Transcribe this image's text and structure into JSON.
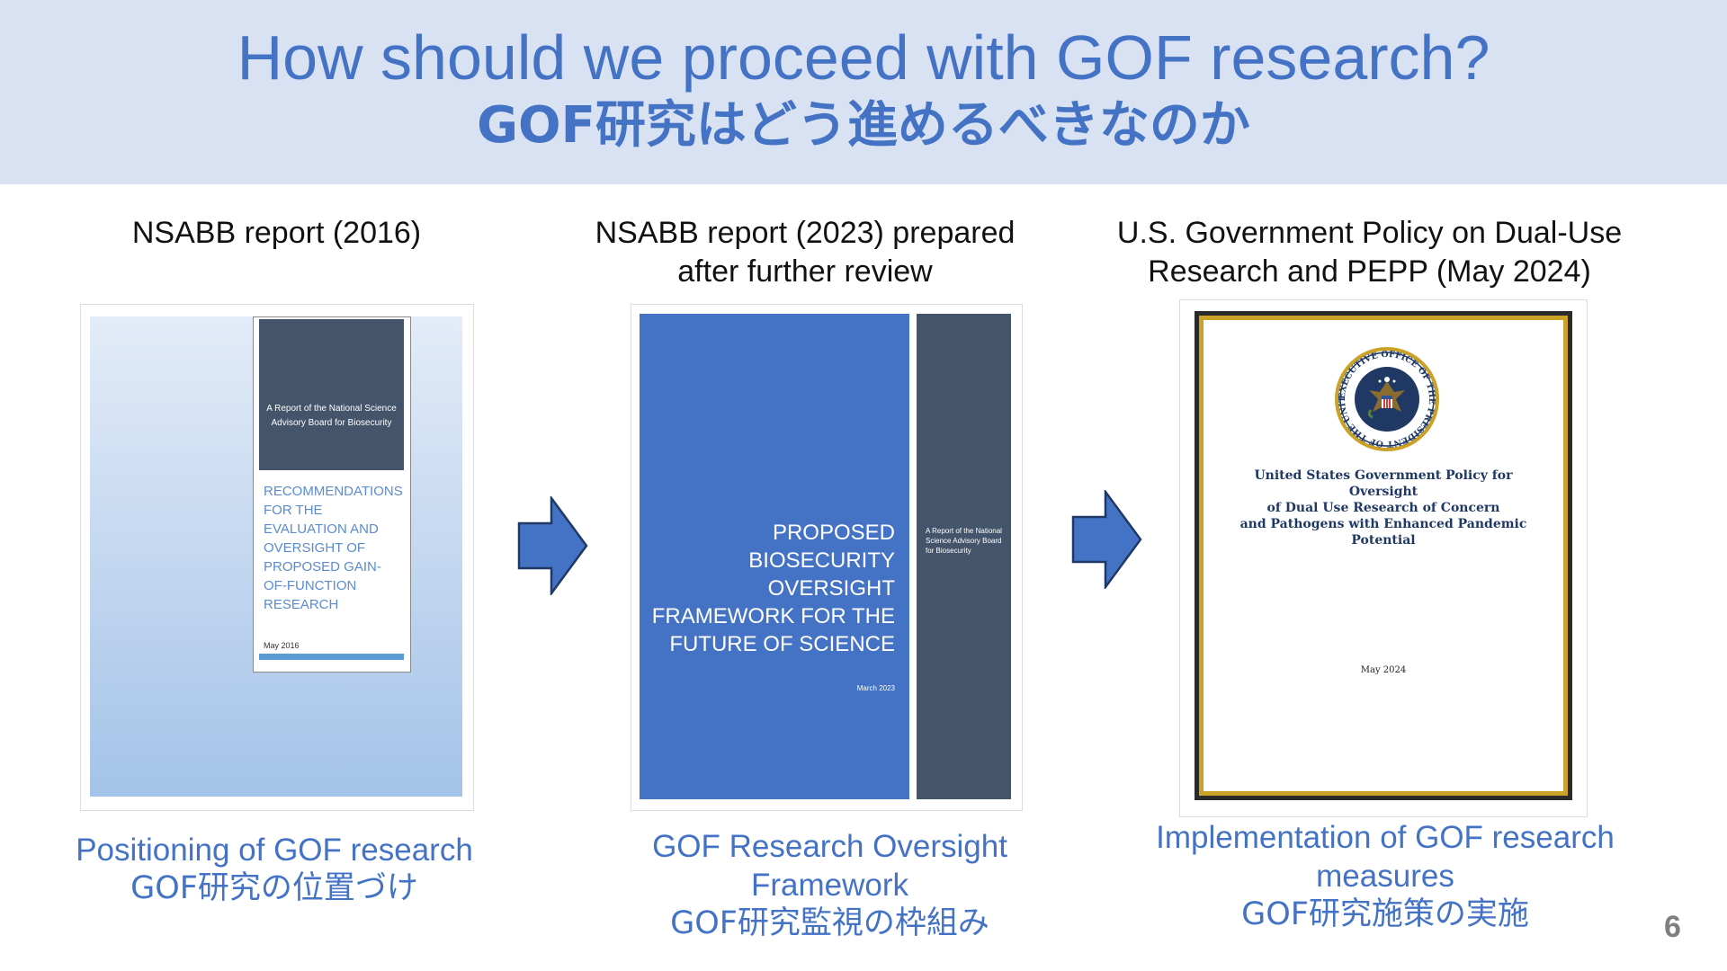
{
  "header": {
    "title_en": "How should we proceed with GOF research?",
    "title_ja": "GOF研究はどう進めるべきなのか"
  },
  "columns": [
    {
      "heading_lines": [
        "NSABB report (2016)"
      ],
      "caption_lines": [
        "Positioning of GOF research",
        "GOF研究の位置づけ"
      ],
      "doc": {
        "subtitle": "A Report of the National Science Advisory Board for Biosecurity",
        "title": "Recommendations for the Evaluation and Oversight of Proposed Gain-of-Function Research",
        "date": "May 2016"
      }
    },
    {
      "heading_lines": [
        "NSABB report (2023) prepared",
        "after further review"
      ],
      "caption_lines": [
        "GOF Research Oversight",
        "Framework",
        "GOF研究監視の枠組み"
      ],
      "doc": {
        "title": "Proposed Biosecurity Oversight Framework for the Future of Science",
        "date": "March 2023",
        "side_text": "A Report of the National Science Advisory Board for Biosecurity"
      }
    },
    {
      "heading_lines": [
        "U.S. Government Policy on Dual-Use",
        "Research and PEPP (May 2024)"
      ],
      "caption_lines": [
        "Implementation of GOF research",
        "measures",
        "GOF研究施策の実施"
      ],
      "doc": {
        "title_lines": [
          "United States Government Policy for Oversight",
          "of Dual Use Research of Concern",
          "and Pathogens with Enhanced Pandemic",
          "Potential"
        ],
        "date": "May 2024",
        "seal_text": "EXECUTIVE OFFICE OF THE PRESIDENT OF THE UNITED STATES"
      }
    }
  ],
  "page_number": "6",
  "colors": {
    "accent": "#4472c4",
    "banner": "#d9e2f3",
    "slate": "#44546a"
  }
}
